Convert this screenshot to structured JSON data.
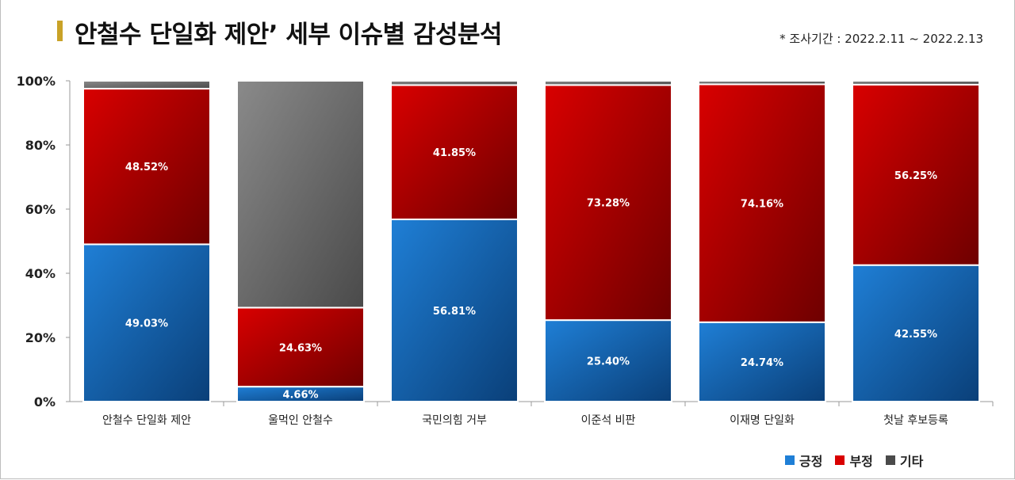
{
  "header": {
    "title": "안철수 단일화 제안’ 세부 이슈별 감성분석",
    "period": "* 조사기간 : 2022.2.11 ~ 2022.2.13"
  },
  "colors": {
    "positive_light": "#1f7fd6",
    "positive_dark": "#0a3f78",
    "negative_light": "#d90000",
    "negative_dark": "#6e0000",
    "other_light": "#8a8a8a",
    "other_dark": "#4a4a4a"
  },
  "chart_data": {
    "type": "bar",
    "stacked": true,
    "percent": true,
    "categories": [
      "안철수 단일화 제안",
      "울먹인 안철수",
      "국민의힘 거부",
      "이준석 비판",
      "이재명 단일화",
      "첫날 후보등록"
    ],
    "series": [
      {
        "name": "긍정",
        "values": [
          49.03,
          4.66,
          56.81,
          25.4,
          24.74,
          42.55
        ],
        "labels": [
          "49.03%",
          "4.66%",
          "56.81%",
          "25.40%",
          "24.74%",
          "42.55%"
        ]
      },
      {
        "name": "부정",
        "values": [
          48.52,
          24.63,
          41.85,
          73.28,
          74.16,
          56.25
        ],
        "labels": [
          "48.52%",
          "24.63%",
          "41.85%",
          "73.28%",
          "74.16%",
          "56.25%"
        ]
      },
      {
        "name": "기타",
        "values": [
          2.45,
          70.71,
          1.34,
          1.32,
          1.1,
          1.2
        ],
        "labels": []
      }
    ],
    "ylim": [
      0,
      100
    ],
    "yticks": [
      "0%",
      "20%",
      "40%",
      "60%",
      "80%",
      "100%"
    ],
    "grid": false,
    "legend": "bottom-right"
  }
}
